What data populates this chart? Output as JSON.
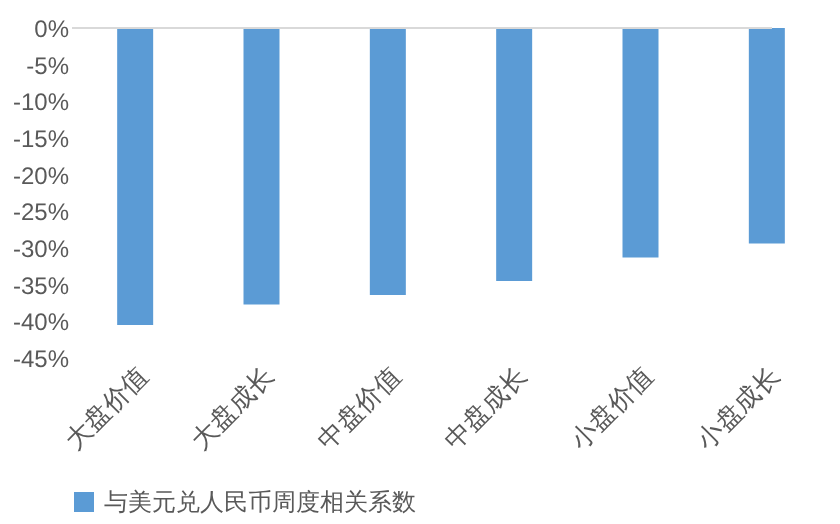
{
  "chart_data": {
    "type": "bar",
    "categories": [
      "大盘价值",
      "大盘成长",
      "中盘价值",
      "中盘成长",
      "小盘价值",
      "小盘成长"
    ],
    "series": [
      {
        "name": "与美元兑人民币周度相关系数",
        "color": "#5b9bd5",
        "values": [
          -40.5,
          -37.7,
          -36.4,
          -34.5,
          -31.3,
          -29.4
        ]
      }
    ],
    "ylim": [
      -45,
      0
    ],
    "yticks": [
      {
        "value": 0,
        "label": "0%"
      },
      {
        "value": -5,
        "label": "-5%"
      },
      {
        "value": -10,
        "label": "-10%"
      },
      {
        "value": -15,
        "label": "-15%"
      },
      {
        "value": -20,
        "label": "-20%"
      },
      {
        "value": -25,
        "label": "-25%"
      },
      {
        "value": -30,
        "label": "-30%"
      },
      {
        "value": -35,
        "label": "-35%"
      },
      {
        "value": -40,
        "label": "-40%"
      },
      {
        "value": -45,
        "label": "-45%"
      }
    ],
    "grid": false,
    "legend": "bottom"
  }
}
